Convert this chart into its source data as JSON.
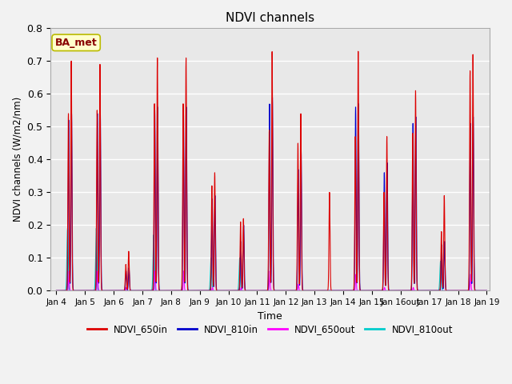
{
  "title": "NDVI channels",
  "xlabel": "Time",
  "ylabel": "NDVI channels (W/m2/nm)",
  "annotation": "BA_met",
  "ylim": [
    0.0,
    0.8
  ],
  "series_colors": {
    "NDVI_650in": "#dd0000",
    "NDVI_810in": "#0000cc",
    "NDVI_650out": "#ff00ff",
    "NDVI_810out": "#00cccc"
  },
  "background_color": "#e8e8e8",
  "grid_color": "#ffffff",
  "annotation_bg": "#ffffcc",
  "annotation_border": "#bbbb00",
  "xtick_labels": [
    "Jan 4",
    "Jan 5",
    "Jan 6",
    "Jan 7",
    "Jan 8",
    "Jan 9",
    "Jan 10",
    "Jan 11",
    "Jan 12",
    "Jan 13",
    "Jan 14",
    "Jan 15",
    "Jan 16out",
    "Jan 17",
    "Jan 18",
    "Jan 19"
  ],
  "peaks_650in": [
    0.7,
    0.69,
    0.12,
    0.71,
    0.71,
    0.36,
    0.22,
    0.73,
    0.54,
    0.3,
    0.73,
    0.47,
    0.61,
    0.29,
    0.72
  ],
  "peaks_650in2": [
    0.54,
    0.55,
    0.08,
    0.57,
    0.57,
    0.32,
    0.21,
    0.49,
    0.45,
    0.0,
    0.47,
    0.3,
    0.48,
    0.18,
    0.67
  ],
  "peaks_810in": [
    0.54,
    0.55,
    0.07,
    0.56,
    0.56,
    0.29,
    0.2,
    0.59,
    0.43,
    0.0,
    0.57,
    0.39,
    0.53,
    0.15,
    0.53
  ],
  "peaks_810in2": [
    0.52,
    0.54,
    0.06,
    0.55,
    0.55,
    0.28,
    0.15,
    0.57,
    0.37,
    0.0,
    0.56,
    0.36,
    0.51,
    0.14,
    0.51
  ],
  "peaks_650out": [
    0.06,
    0.06,
    0.01,
    0.06,
    0.06,
    0.01,
    0.01,
    0.06,
    0.02,
    0.0,
    0.05,
    0.01,
    0.01,
    0.0,
    0.05
  ],
  "peaks_810out": [
    0.19,
    0.19,
    0.0,
    0.17,
    0.0,
    0.1,
    0.1,
    0.0,
    0.0,
    0.0,
    0.0,
    0.0,
    0.0,
    0.09,
    0.0
  ]
}
